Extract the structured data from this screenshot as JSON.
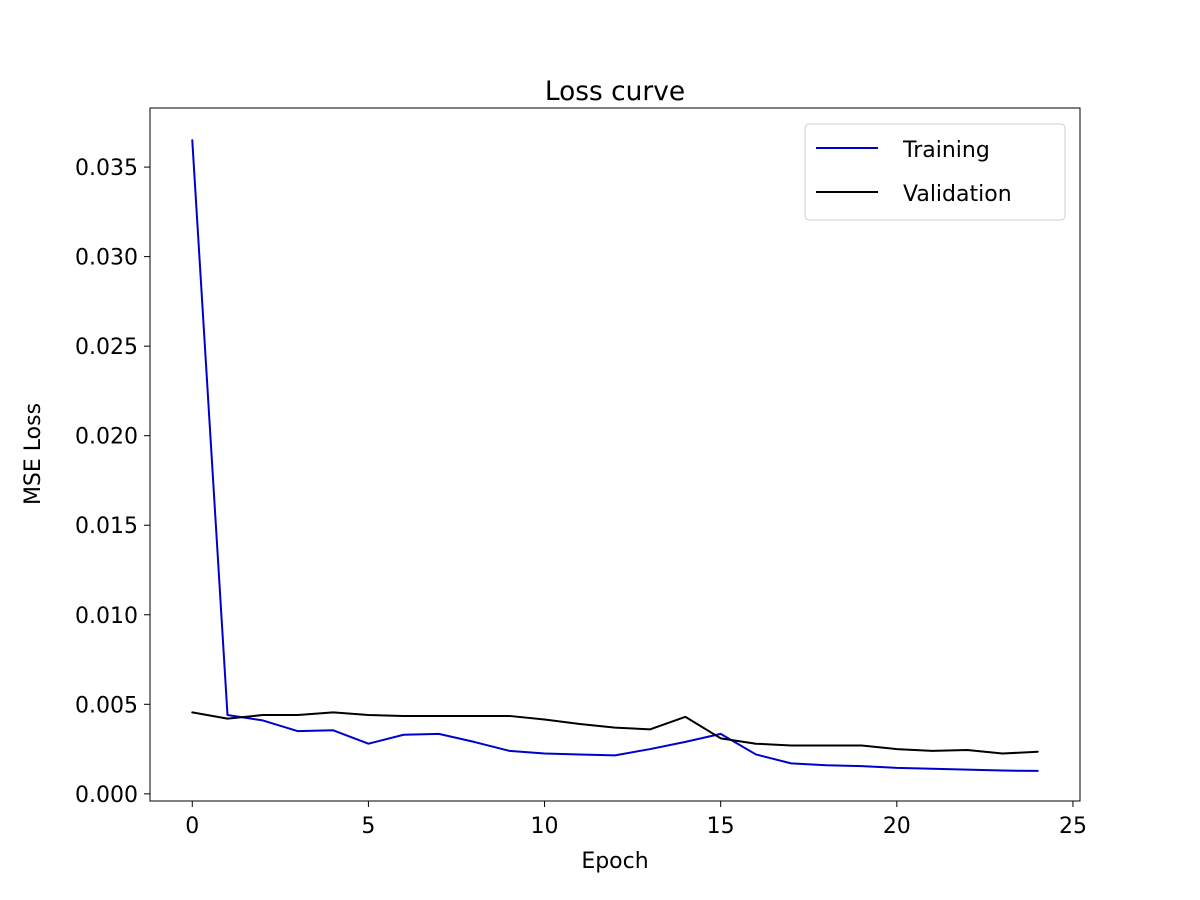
{
  "chart_data": {
    "type": "line",
    "title": "Loss curve",
    "xlabel": "Epoch",
    "ylabel": "MSE Loss",
    "xlim": [
      -1.2,
      25.2
    ],
    "ylim": [
      -0.0004,
      0.0383
    ],
    "xticks": [
      0,
      5,
      10,
      15,
      20,
      25
    ],
    "xtick_labels": [
      "0",
      "5",
      "10",
      "15",
      "20",
      "25"
    ],
    "yticks": [
      0.0,
      0.005,
      0.01,
      0.015,
      0.02,
      0.025,
      0.03,
      0.035
    ],
    "ytick_labels": [
      "0.000",
      "0.005",
      "0.010",
      "0.015",
      "0.020",
      "0.025",
      "0.030",
      "0.035"
    ],
    "grid": false,
    "legend_position": "top-right",
    "x": [
      0,
      1,
      2,
      3,
      4,
      5,
      6,
      7,
      8,
      9,
      10,
      11,
      12,
      13,
      14,
      15,
      16,
      17,
      18,
      19,
      20,
      21,
      22,
      23,
      24
    ],
    "series": [
      {
        "name": "Training",
        "color": "#0000cc",
        "values": [
          0.0365,
          0.0044,
          0.0041,
          0.0035,
          0.00355,
          0.0028,
          0.0033,
          0.00335,
          0.0029,
          0.0024,
          0.00225,
          0.0022,
          0.00215,
          0.0025,
          0.0029,
          0.00335,
          0.0022,
          0.0017,
          0.0016,
          0.00155,
          0.00145,
          0.0014,
          0.00135,
          0.0013,
          0.00128
        ]
      },
      {
        "name": "Validation",
        "color": "#000000",
        "values": [
          0.00455,
          0.0042,
          0.0044,
          0.0044,
          0.00455,
          0.0044,
          0.00435,
          0.00435,
          0.00435,
          0.00435,
          0.00415,
          0.0039,
          0.0037,
          0.0036,
          0.0043,
          0.0031,
          0.0028,
          0.0027,
          0.0027,
          0.0027,
          0.0025,
          0.0024,
          0.00245,
          0.00225,
          0.00235
        ]
      }
    ]
  }
}
